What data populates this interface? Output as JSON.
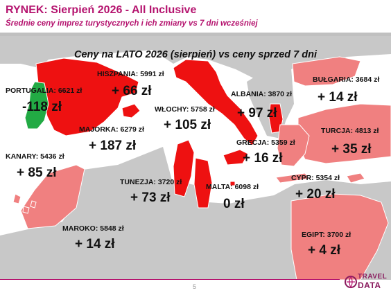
{
  "header": {
    "title": "RYNEK: Sierpień 2026 - All Inclusive",
    "subtitle": "Średnie ceny imprez turystycznych i ich zmiany vs 7 dni wcześniej"
  },
  "map": {
    "caption": "Ceny na LATO 2026 (sierpień) vs ceny sprzed 7 dni",
    "colors": {
      "sea": "#ffffff",
      "land": "#c8c8c8",
      "strong_increase": "#ee1111",
      "increase": "#f08080",
      "decrease": "#22aa44"
    },
    "destinations": [
      {
        "label": "PORTUGALIA: 6621 zł",
        "change": "-118 zł",
        "fill": "decrease"
      },
      {
        "label": "HISZPANIA: 5991 zł",
        "change": "+ 66 zł",
        "fill": "strong_increase"
      },
      {
        "label": "MAJORKA: 6279 zł",
        "change": "+ 187 zł",
        "fill": "strong_increase"
      },
      {
        "label": "WŁOCHY: 5758 zł",
        "change": "+ 105 zł",
        "fill": "strong_increase"
      },
      {
        "label": "ALBANIA: 3870 zł",
        "change": "+ 97 zł",
        "fill": "strong_increase"
      },
      {
        "label": "BUŁGARIA: 3684 zł",
        "change": "+ 14 zł",
        "fill": "increase"
      },
      {
        "label": "TURCJA: 4813 zł",
        "change": "+ 35 zł",
        "fill": "increase"
      },
      {
        "label": "GRECJA: 5359 zł",
        "change": "+ 16 zł",
        "fill": "increase"
      },
      {
        "label": "KANARY: 5436 zł",
        "change": "+ 85 zł",
        "fill": "increase"
      },
      {
        "label": "TUNEZJA: 3720 zł",
        "change": "+ 73 zł",
        "fill": "strong_increase"
      },
      {
        "label": "MALTA: 6098 zł",
        "change": "0 zł",
        "fill": "strong_increase"
      },
      {
        "label": "CYPR: 5354 zł",
        "change": "+ 20 zł",
        "fill": "increase"
      },
      {
        "label": "MAROKO: 5848 zł",
        "change": "+ 14 zł",
        "fill": "increase"
      },
      {
        "label": "EGIPT: 3700 zł",
        "change": "+ 4 zł",
        "fill": "increase"
      }
    ]
  },
  "footer": {
    "page_number": "5",
    "logo_line1": "TRAVEL",
    "logo_line2": "DATA"
  }
}
